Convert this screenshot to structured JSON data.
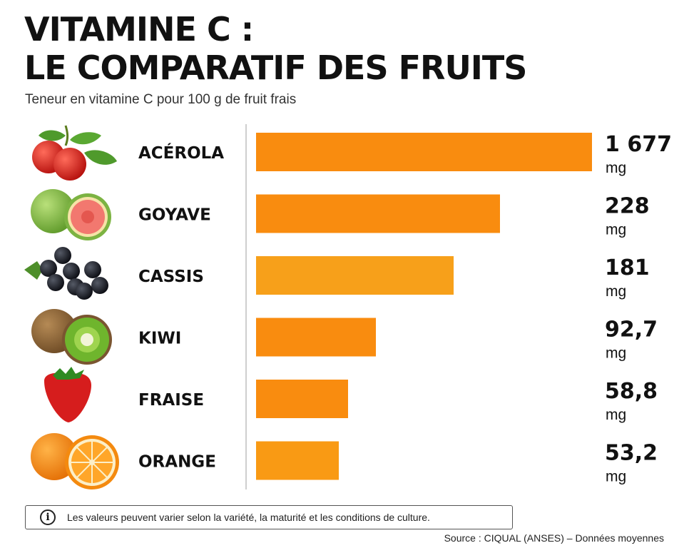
{
  "header": {
    "title_line1": "VITAMINE C :",
    "title_line2": "LE COMPARATIF DES FRUITS",
    "subtitle": "Teneur en vitamine C pour 100 g de fruit frais"
  },
  "chart_data": {
    "type": "bar",
    "orientation": "horizontal",
    "title": "VITAMINE C : LE COMPARATIF DES FRUITS",
    "subtitle": "Teneur en vitamine C pour 100 g de fruit frais",
    "categories": [
      "ACÉROLA",
      "GOYAVE",
      "CASSIS",
      "KIWI",
      "FRAISE",
      "ORANGE"
    ],
    "values": [
      1677,
      228,
      181,
      92.7,
      58.8,
      53.2
    ],
    "value_labels": [
      "1 677",
      "228",
      "181",
      "92,7",
      "58,8",
      "53,2"
    ],
    "unit": "mg",
    "icons": [
      "acerola-icon",
      "guava-icon",
      "blackcurrant-icon",
      "kiwi-icon",
      "strawberry-icon",
      "orange-icon"
    ],
    "bar_colors": [
      "#f98c0f",
      "#f98c0f",
      "#f7a01a",
      "#f98c0f",
      "#f98c0f",
      "#f99a14"
    ],
    "scale": "non-proportional (truncated)",
    "grid": false,
    "legend": "none"
  },
  "footer": {
    "notice_icon": "info-icon",
    "notice": "Les valeurs peuvent varier selon la variété, la maturité et les conditions de culture.",
    "source": "Source : CIQUAL (ANSES) – Données moyennes"
  }
}
